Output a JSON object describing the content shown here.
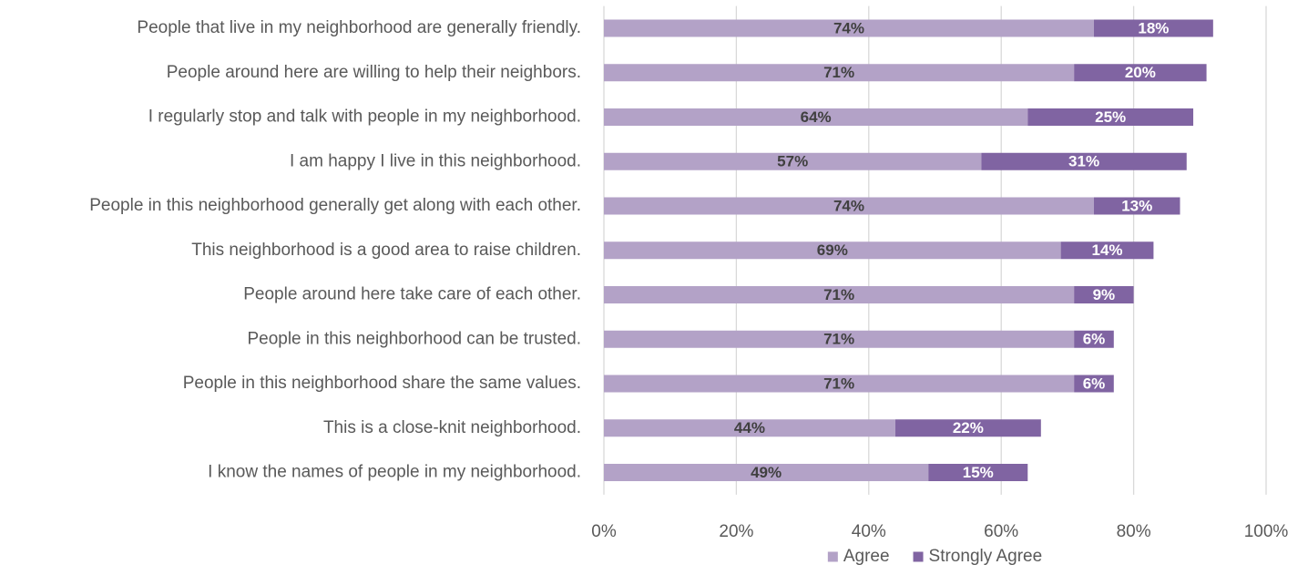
{
  "chart_data": {
    "type": "bar",
    "orientation": "horizontal",
    "stacked": true,
    "title": "",
    "xlabel": "",
    "ylabel": "",
    "categories": [
      "People that live in my neighborhood are generally friendly.",
      "People around here are willing to help their neighbors.",
      "I regularly stop and talk with people in my neighborhood.",
      "I am happy I live in this neighborhood.",
      "People in this neighborhood generally get along with each other.",
      "This neighborhood is a good area to raise children.",
      "People around here take care of each other.",
      "People in this neighborhood can be trusted.",
      "People in this neighborhood share the same values.",
      "This is a close-knit neighborhood.",
      "I know the names of people in my neighborhood."
    ],
    "series": [
      {
        "name": "Agree",
        "color": "#b3a2c7",
        "label_color": "#404040",
        "values": [
          74,
          71,
          64,
          57,
          74,
          69,
          71,
          71,
          71,
          44,
          49
        ]
      },
      {
        "name": "Strongly Agree",
        "color": "#8064a2",
        "label_color": "#ffffff",
        "values": [
          18,
          20,
          25,
          31,
          13,
          14,
          9,
          6,
          6,
          22,
          15
        ]
      }
    ],
    "xlim": [
      0,
      100
    ],
    "x_ticks": [
      0,
      20,
      40,
      60,
      80,
      100
    ],
    "tick_labels": [
      "0%",
      "20%",
      "40%",
      "60%",
      "80%",
      "100%"
    ],
    "value_suffix": "%",
    "gridlines": true,
    "gridline_color": "#d9d9d9",
    "legend_position": "bottom"
  }
}
